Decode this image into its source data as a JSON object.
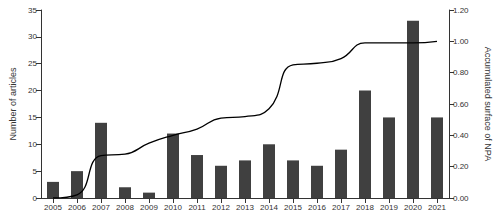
{
  "chart_data": {
    "type": "bar",
    "categories": [
      "2005",
      "2006",
      "2007",
      "2008",
      "2009",
      "2010",
      "2011",
      "2012",
      "2013",
      "2014",
      "2015",
      "2016",
      "2017",
      "2018",
      "2019",
      "2020",
      "2021"
    ],
    "series": [
      {
        "name": "Number of articles",
        "type": "bar",
        "color": "#404040",
        "values": [
          3,
          5,
          14,
          2,
          1,
          12,
          8,
          6,
          7,
          10,
          7,
          6,
          9,
          20,
          15,
          33,
          15
        ]
      },
      {
        "name": "Accumulated surface of NPA",
        "type": "line",
        "axis": "y2",
        "color": "#000000",
        "marker": "none",
        "line_style": "solid",
        "values": [
          0.0,
          0.02,
          0.27,
          0.28,
          0.35,
          0.4,
          0.44,
          0.51,
          0.52,
          0.57,
          0.85,
          0.86,
          0.89,
          0.99,
          0.99,
          0.99,
          1.0
        ]
      }
    ],
    "ylabel": "Number of articles",
    "y2label": "Accumulated surface of NPA",
    "ylim": [
      0,
      35
    ],
    "yticks": [
      0,
      5,
      10,
      15,
      20,
      25,
      30,
      35
    ],
    "y2lim": [
      0,
      1.2
    ],
    "y2ticks": [
      {
        "value": 0,
        "label": "0.00"
      },
      {
        "value": 0.2,
        "label": "0.20"
      },
      {
        "value": 0.4,
        "label": "0.40"
      },
      {
        "value": 0.6,
        "label": "0.60"
      },
      {
        "value": 0.8,
        "label": "0.80"
      },
      {
        "value": 1.0,
        "label": "1.00"
      },
      {
        "value": 1.2,
        "label": "1.20"
      }
    ],
    "grid": false
  }
}
